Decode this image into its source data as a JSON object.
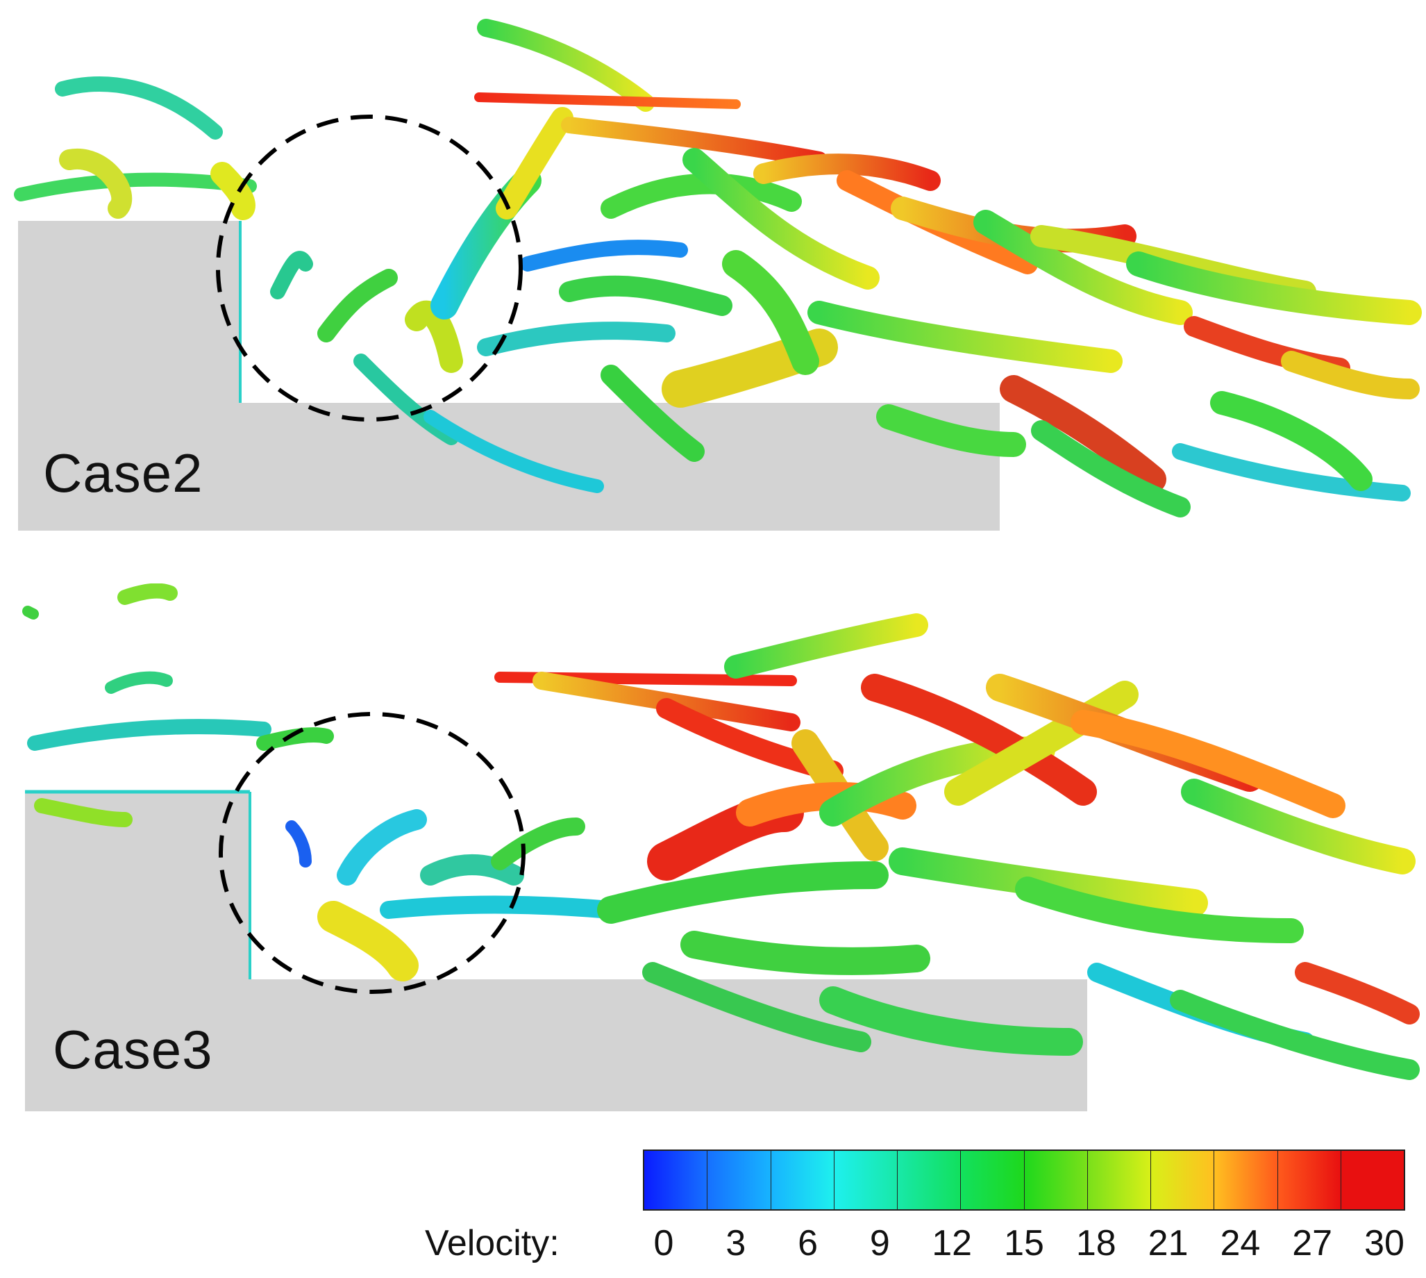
{
  "panels": [
    {
      "label": "Case2"
    },
    {
      "label": "Case3"
    }
  ],
  "legend": {
    "label": "Velocity:",
    "ticks": [
      "0",
      "3",
      "6",
      "9",
      "12",
      "15",
      "18",
      "21",
      "24",
      "27",
      "30"
    ],
    "colors": [
      "#0a1cff",
      "#1670ff",
      "#17b4ff",
      "#1ef0ee",
      "#18e8a8",
      "#12e05e",
      "#1ed81c",
      "#7ae01a",
      "#d8f018",
      "#ffc020",
      "#ff5a1c",
      "#e81010"
    ]
  },
  "colors": {
    "solid_body": "#d3d3d3",
    "dashed_circle": "#000000"
  }
}
